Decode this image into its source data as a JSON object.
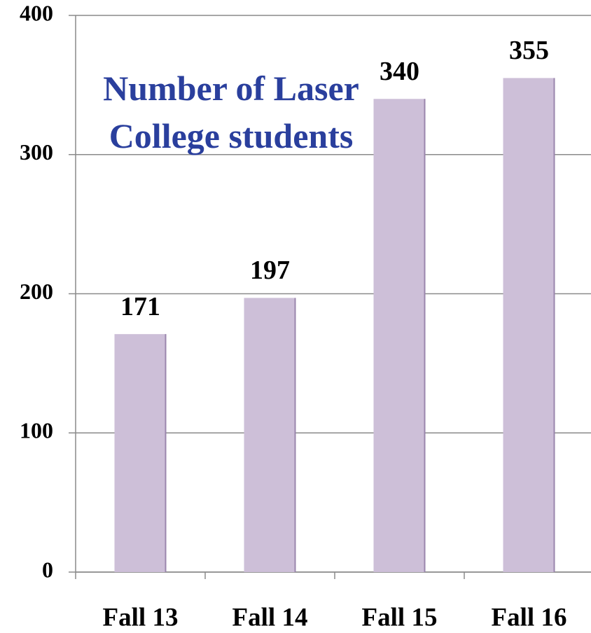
{
  "chart_data": {
    "type": "bar",
    "title": "Number of Laser College students",
    "categories": [
      "Fall 13",
      "Fall 14",
      "Fall 15",
      "Fall 16"
    ],
    "values": [
      171,
      197,
      340,
      355
    ],
    "color": "#cdbfd8",
    "ylim": [
      0,
      400
    ],
    "yticks": [
      0,
      100,
      200,
      300,
      400
    ],
    "grid": true
  }
}
